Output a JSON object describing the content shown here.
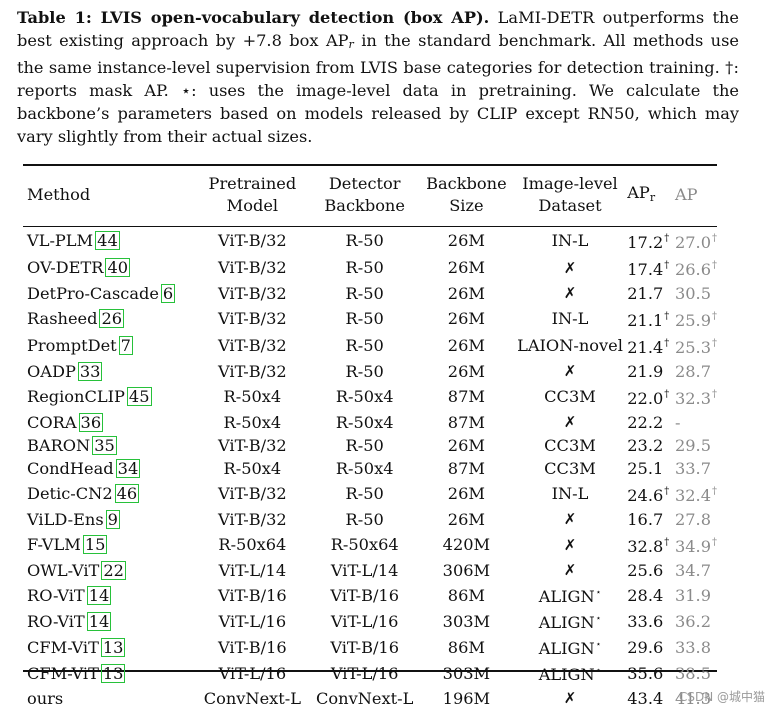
{
  "caption": {
    "label": "Table 1: LVIS open-vocabulary detection (box AP).",
    "text_a": " LaMI-DETR outperforms the best existing approach by +7.8 box AP",
    "text_a_sub": "r",
    "text_b": " in the standard benchmark. All methods use the same instance-level supervision from LVIS base categories for detection training. †: reports mask AP. ⋆: uses the image-level data in pretraining. We calculate the backbone’s parameters based on models released by CLIP except RN50, which may vary slightly from their actual sizes."
  },
  "headers": {
    "method": "Method",
    "model": [
      "Pretrained",
      "Model"
    ],
    "detector": [
      "Detector",
      "Backbone"
    ],
    "backbone": [
      "Backbone",
      "Size"
    ],
    "dataset": [
      "Image-level",
      "Dataset"
    ],
    "apr": "AP",
    "apr_sub": "r",
    "ap": "AP"
  },
  "rows": [
    {
      "method": "VL-PLM",
      "ref": "44",
      "model": "ViT-B/32",
      "detector": "R-50",
      "size": "26M",
      "dataset": "IN-L",
      "apr": "17.2",
      "ap": "27.0",
      "dag": true
    },
    {
      "method": "OV-DETR",
      "ref": "40",
      "model": "ViT-B/32",
      "detector": "R-50",
      "size": "26M",
      "dataset": "✗",
      "apr": "17.4",
      "ap": "26.6",
      "dag": true
    },
    {
      "method": "DetPro-Cascade",
      "ref": "6",
      "model": "ViT-B/32",
      "detector": "R-50",
      "size": "26M",
      "dataset": "✗",
      "apr": "21.7",
      "ap": "30.5",
      "dag": false
    },
    {
      "method": "Rasheed",
      "ref": "26",
      "model": "ViT-B/32",
      "detector": "R-50",
      "size": "26M",
      "dataset": "IN-L",
      "apr": "21.1",
      "ap": "25.9",
      "dag": true
    },
    {
      "method": "PromptDet",
      "ref": "7",
      "model": "ViT-B/32",
      "detector": "R-50",
      "size": "26M",
      "dataset": "LAION-novel",
      "apr": "21.4",
      "ap": "25.3",
      "dag": true
    },
    {
      "method": "OADP",
      "ref": "33",
      "model": "ViT-B/32",
      "detector": "R-50",
      "size": "26M",
      "dataset": "✗",
      "apr": "21.9",
      "ap": "28.7",
      "dag": false
    },
    {
      "method": "RegionCLIP",
      "ref": "45",
      "model": "R-50x4",
      "detector": "R-50x4",
      "size": "87M",
      "dataset": "CC3M",
      "apr": "22.0",
      "ap": "32.3",
      "dag": true
    },
    {
      "method": "CORA",
      "ref": "36",
      "model": "R-50x4",
      "detector": "R-50x4",
      "size": "87M",
      "dataset": "✗",
      "apr": "22.2",
      "ap": "-",
      "dag": false
    },
    {
      "method": "BARON",
      "ref": "35",
      "model": "ViT-B/32",
      "detector": "R-50",
      "size": "26M",
      "dataset": "CC3M",
      "apr": "23.2",
      "ap": "29.5",
      "dag": false
    },
    {
      "method": "CondHead",
      "ref": "34",
      "model": "R-50x4",
      "detector": "R-50x4",
      "size": "87M",
      "dataset": "CC3M",
      "apr": "25.1",
      "ap": "33.7",
      "dag": false
    },
    {
      "method": "Detic-CN2",
      "ref": "46",
      "model": "ViT-B/32",
      "detector": "R-50",
      "size": "26M",
      "dataset": "IN-L",
      "apr": "24.6",
      "ap": "32.4",
      "dag": true
    },
    {
      "method": "ViLD-Ens",
      "ref": "9",
      "model": "ViT-B/32",
      "detector": "R-50",
      "size": "26M",
      "dataset": "✗",
      "apr": "16.7",
      "ap": "27.8",
      "dag": false
    },
    {
      "method": "F-VLM",
      "ref": "15",
      "model": "R-50x64",
      "detector": "R-50x64",
      "size": "420M",
      "dataset": "✗",
      "apr": "32.8",
      "ap": "34.9",
      "dag": true
    },
    {
      "method": "OWL-ViT",
      "ref": "22",
      "model": "ViT-L/14",
      "detector": "ViT-L/14",
      "size": "306M",
      "dataset": "✗",
      "apr": "25.6",
      "ap": "34.7",
      "dag": false
    },
    {
      "method": "RO-ViT",
      "ref": "14",
      "model": "ViT-B/16",
      "detector": "ViT-B/16",
      "size": "86M",
      "dataset": "ALIGN",
      "star": true,
      "apr": "28.4",
      "ap": "31.9",
      "dag": false
    },
    {
      "method": "RO-ViT",
      "ref": "14",
      "model": "ViT-L/16",
      "detector": "ViT-L/16",
      "size": "303M",
      "dataset": "ALIGN",
      "star": true,
      "apr": "33.6",
      "ap": "36.2",
      "dag": false
    },
    {
      "method": "CFM-ViT",
      "ref": "13",
      "model": "ViT-B/16",
      "detector": "ViT-B/16",
      "size": "86M",
      "dataset": "ALIGN",
      "star": true,
      "apr": "29.6",
      "ap": "33.8",
      "dag": false
    },
    {
      "method": "CFM-ViT",
      "ref": "13",
      "model": "ViT-L/16",
      "detector": "ViT-L/16",
      "size": "303M",
      "dataset": "ALIGN",
      "star": true,
      "apr": "35.6",
      "ap": "38.5",
      "dag": false
    },
    {
      "method": "ours",
      "ref": "",
      "model": "ConvNext-L",
      "detector": "ConvNext-L",
      "size": "196M",
      "dataset": "✗",
      "apr": "43.4",
      "ap": "41.3",
      "dag": false,
      "bold": true
    }
  ],
  "symbols": {
    "dagger": "†",
    "star": "⋆"
  },
  "watermark": "CSDN @城中猫",
  "colors": {
    "ref_box": "#27c13a",
    "ap_gray": "#8a8a8a"
  }
}
